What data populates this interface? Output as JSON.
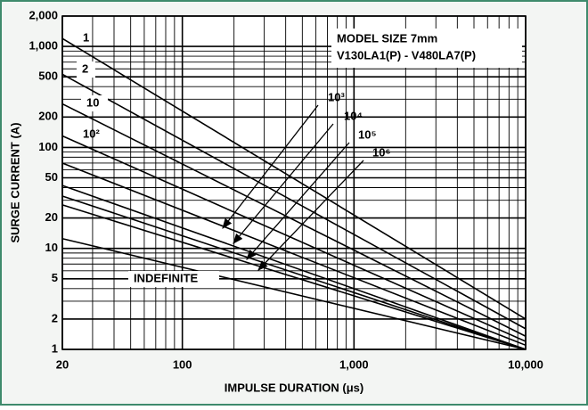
{
  "chart_data": {
    "type": "line",
    "xlabel": "IMPULSE DURATION (μs)",
    "ylabel": "SURGE CURRENT (A)",
    "annotations": [
      "MODEL SIZE 7mm",
      "V130LA1(P) - V480LA7(P)"
    ],
    "x": [
      20,
      10000
    ],
    "series": [
      {
        "name": "1",
        "color": "#000000",
        "values": [
          1200,
          2
        ]
      },
      {
        "name": "2",
        "color": "#000000",
        "values": [
          530,
          1.6
        ]
      },
      {
        "name": "10",
        "color": "#000000",
        "values": [
          270,
          1.35
        ]
      },
      {
        "name": "10²",
        "color": "#000000",
        "values": [
          130,
          1.2
        ]
      },
      {
        "name": "10³",
        "color": "#000000",
        "values": [
          70,
          1.1
        ]
      },
      {
        "name": "10⁴",
        "color": "#000000",
        "values": [
          42,
          1
        ]
      },
      {
        "name": "10⁵",
        "color": "#000000",
        "values": [
          33,
          1
        ]
      },
      {
        "name": "10⁶",
        "color": "#000000",
        "values": [
          27,
          1
        ]
      },
      {
        "name": "INDEFINITE",
        "color": "#000000",
        "values": [
          12.5,
          1
        ]
      }
    ],
    "xscale": "log",
    "yscale": "log",
    "xlim": [
      20,
      10000
    ],
    "ylim": [
      1,
      2000
    ],
    "xticks": [
      20,
      100,
      {
        "value": 1000,
        "label": "1,000"
      },
      {
        "value": 10000,
        "label": "10,000"
      }
    ],
    "yticks": [
      1,
      2,
      5,
      10,
      20,
      50,
      100,
      200,
      500,
      {
        "value": 1000,
        "label": "1,000"
      },
      {
        "value": 2000,
        "label": "2,000"
      }
    ],
    "xgrid": [
      30,
      40,
      50,
      60,
      70,
      80,
      90,
      200,
      300,
      400,
      500,
      600,
      700,
      800,
      900,
      2000,
      3000,
      4000,
      5000,
      6000,
      7000,
      8000,
      9000
    ],
    "ygrid": [
      3,
      4,
      6,
      7,
      8,
      9,
      30,
      40,
      60,
      70,
      80,
      90,
      300,
      400,
      600,
      700,
      800,
      900
    ],
    "grid": true
  }
}
